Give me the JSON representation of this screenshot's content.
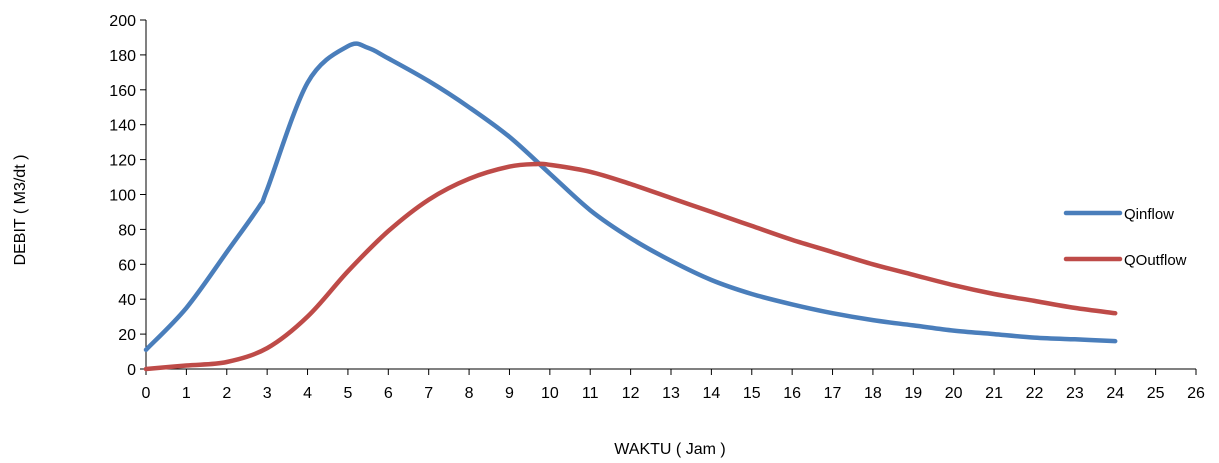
{
  "chart_data": {
    "type": "line",
    "xlabel": "WAKTU ( Jam )",
    "ylabel": "DEBIT ( M3/dt )",
    "xlim": [
      0,
      26
    ],
    "ylim": [
      0,
      200
    ],
    "x_ticks": [
      "0",
      "1",
      "2",
      "3",
      "4",
      "5",
      "6",
      "7",
      "8",
      "9",
      "10",
      "11",
      "12",
      "13",
      "14",
      "15",
      "16",
      "17",
      "18",
      "19",
      "20",
      "21",
      "22",
      "23",
      "24",
      "25",
      "26"
    ],
    "y_ticks": [
      "0",
      "20",
      "40",
      "60",
      "80",
      "100",
      "120",
      "140",
      "160",
      "180",
      "200"
    ],
    "grid": false,
    "legend_position": "right",
    "series": [
      {
        "name": "Qinflow",
        "color": "#4a7ebb",
        "x": [
          0,
          1,
          2,
          2.8,
          3,
          4,
          5,
          5.5,
          6,
          7,
          8,
          9,
          10,
          11,
          12,
          13,
          14,
          15,
          16,
          17,
          18,
          19,
          20,
          21,
          22,
          23,
          24
        ],
        "y": [
          11,
          35,
          67,
          93,
          103,
          164,
          185,
          184,
          178,
          165,
          150,
          133,
          112,
          91,
          75,
          62,
          51,
          43,
          37,
          32,
          28,
          25,
          22,
          20,
          18,
          17,
          16
        ]
      },
      {
        "name": "QOutflow",
        "color": "#be4b48",
        "x": [
          0,
          1,
          2,
          3,
          4,
          5,
          6,
          7,
          8,
          9,
          9.7,
          10,
          11,
          12,
          13,
          14,
          15,
          16,
          17,
          18,
          19,
          20,
          21,
          22,
          23,
          24
        ],
        "y": [
          0,
          2,
          4,
          12,
          30,
          56,
          79,
          97,
          109,
          116,
          117.5,
          117,
          113,
          106,
          98,
          90,
          82,
          74,
          67,
          60,
          54,
          48,
          43,
          39,
          35,
          32
        ]
      }
    ]
  }
}
